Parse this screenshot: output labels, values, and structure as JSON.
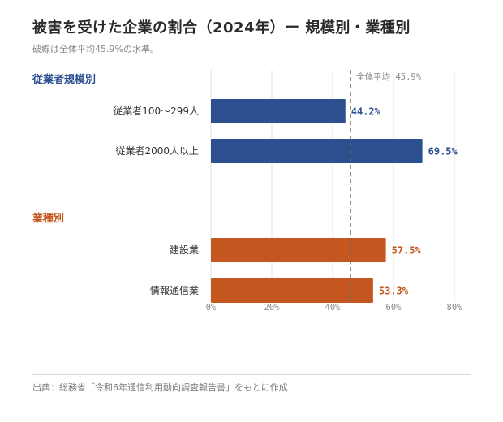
{
  "header": {
    "title": "被害を受けた企業の割合（2024年）ー 規模別・業種別",
    "subtitle": "破線は全体平均45.9%の水準。"
  },
  "footer": {
    "source": "出典：総務省「令和6年通信利用動向調査報告書」をもとに作成"
  },
  "colors": {
    "group1": "#2b4f8f",
    "group2": "#c4571f",
    "grid": "#e2e2e2",
    "reference": "#666666"
  },
  "chart_data": {
    "type": "bar",
    "orientation": "horizontal",
    "groups": [
      {
        "name": "従業者規模別",
        "color": "#2b4f8f",
        "categories": [
          "従業者100〜299人",
          "従業者2000人以上"
        ],
        "values": [
          44.2,
          69.5
        ],
        "value_labels": [
          "44.2%",
          "69.5%"
        ]
      },
      {
        "name": "業種別",
        "color": "#c4571f",
        "categories": [
          "建設業",
          "情報通信業"
        ],
        "values": [
          57.5,
          53.3
        ],
        "value_labels": [
          "57.5%",
          "53.3%"
        ]
      }
    ],
    "xlim": [
      0,
      80
    ],
    "xticks": [
      0,
      20,
      40,
      60,
      80
    ],
    "xtick_labels": [
      "0%",
      "20%",
      "40%",
      "60%",
      "80%"
    ],
    "reference_line": {
      "value": 45.9,
      "label": "全体平均 45.9%",
      "style": "dashed"
    },
    "grid": true
  }
}
